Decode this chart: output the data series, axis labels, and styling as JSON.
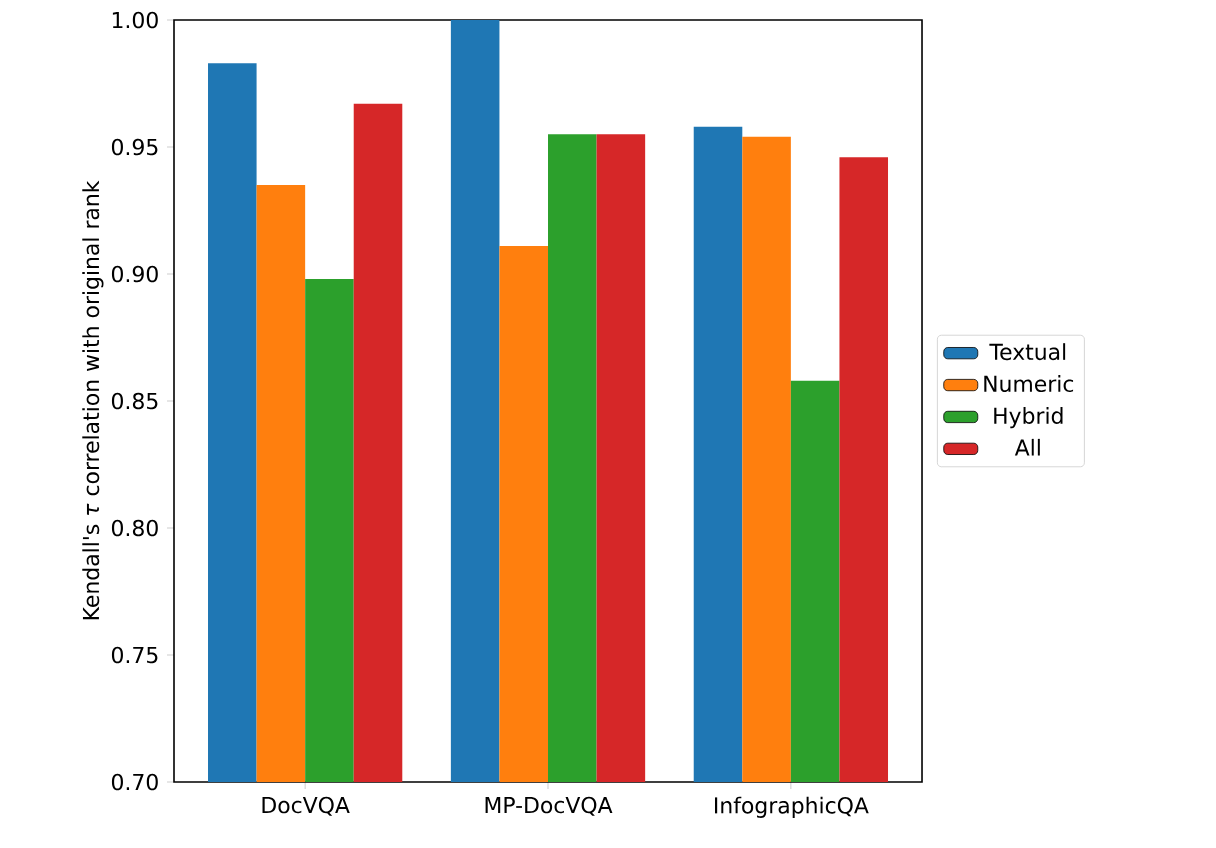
{
  "chart_data": {
    "type": "bar",
    "categories": [
      "DocVQA",
      "MP-DocVQA",
      "InfographicQA"
    ],
    "series": [
      {
        "name": "Textual",
        "color": "#1f77b4",
        "values": [
          0.983,
          1.0,
          0.958
        ]
      },
      {
        "name": "Numeric",
        "color": "#ff7f0e",
        "values": [
          0.935,
          0.911,
          0.954
        ]
      },
      {
        "name": "Hybrid",
        "color": "#2ca02c",
        "values": [
          0.898,
          0.955,
          0.858
        ]
      },
      {
        "name": "All",
        "color": "#d62728",
        "values": [
          0.967,
          0.955,
          0.946
        ]
      }
    ],
    "ylabel": "Kendall's *τ* correlation with original rank",
    "ylim": [
      0.7,
      1.0
    ],
    "yticks": [
      {
        "value": 0.7,
        "label": "0.70"
      },
      {
        "value": 0.75,
        "label": "0.75"
      },
      {
        "value": 0.8,
        "label": "0.80"
      },
      {
        "value": 0.85,
        "label": "0.85"
      },
      {
        "value": 0.9,
        "label": "0.90"
      },
      {
        "value": 0.95,
        "label": "0.95"
      },
      {
        "value": 1.0,
        "label": "1.00"
      }
    ],
    "legend": "right"
  }
}
